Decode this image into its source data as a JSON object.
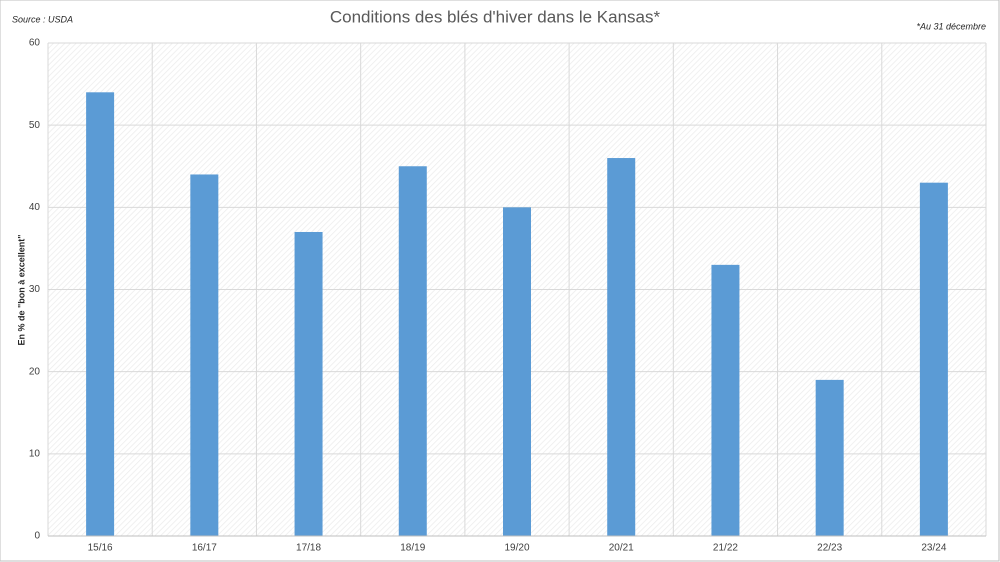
{
  "chart_data": {
    "type": "bar",
    "title": "Conditions des blés d'hiver dans le Kansas*",
    "source": "Source : USDA",
    "note": "*Au 31 décembre",
    "y_label": "En % de \"bon à excellent\"",
    "categories": [
      "15/16",
      "16/17",
      "17/18",
      "18/19",
      "19/20",
      "20/21",
      "21/22",
      "22/23",
      "23/24"
    ],
    "values": [
      54,
      44,
      37,
      45,
      40,
      46,
      33,
      19,
      43
    ],
    "color": "#5b9bd5",
    "ylim": [
      0,
      60
    ],
    "yticks": [
      0,
      10,
      20,
      30,
      40,
      50,
      60
    ],
    "grid": true
  }
}
